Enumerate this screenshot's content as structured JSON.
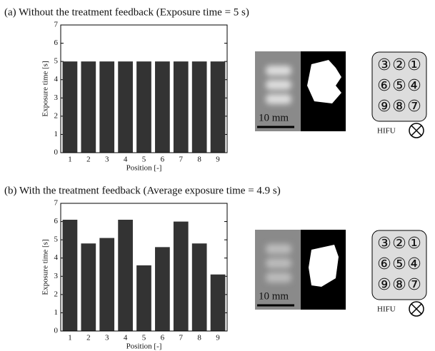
{
  "chart_data": [
    {
      "type": "bar",
      "title": "(a) Without the treatment feedback (Exposure time = 5 s)",
      "x_label": "Position [-]",
      "y_label": "Exposure time [s]",
      "categories": [
        "1",
        "2",
        "3",
        "4",
        "5",
        "6",
        "7",
        "8",
        "9"
      ],
      "values": [
        5,
        5,
        5,
        5,
        5,
        5,
        5,
        5,
        5
      ],
      "color": "#333333",
      "ylim": [
        0,
        7
      ],
      "yticks": [
        0,
        1,
        2,
        3,
        4,
        5,
        6,
        7
      ]
    },
    {
      "type": "bar",
      "title": "(b) With the treatment feedback (Average exposure time = 4.9 s)",
      "x_label": "Position [-]",
      "y_label": "Exposure time [s]",
      "categories": [
        "1",
        "2",
        "3",
        "4",
        "5",
        "6",
        "7",
        "8",
        "9"
      ],
      "values": [
        6.1,
        4.8,
        5.1,
        6.1,
        3.6,
        4.6,
        6.0,
        4.8,
        3.1
      ],
      "color": "#333333",
      "ylim": [
        0,
        7
      ],
      "yticks": [
        0,
        1,
        2,
        3,
        4,
        5,
        6,
        7
      ]
    }
  ],
  "panels": [
    {
      "scale_label": "10 mm",
      "array_labels": [
        "③",
        "②",
        "①",
        "⑥",
        "⑤",
        "④",
        "⑨",
        "⑧",
        "⑦"
      ],
      "hifu_label": "HIFU"
    },
    {
      "scale_label": "10 mm",
      "array_labels": [
        "③",
        "②",
        "①",
        "⑥",
        "⑤",
        "④",
        "⑨",
        "⑧",
        "⑦"
      ],
      "hifu_label": "HIFU"
    }
  ]
}
